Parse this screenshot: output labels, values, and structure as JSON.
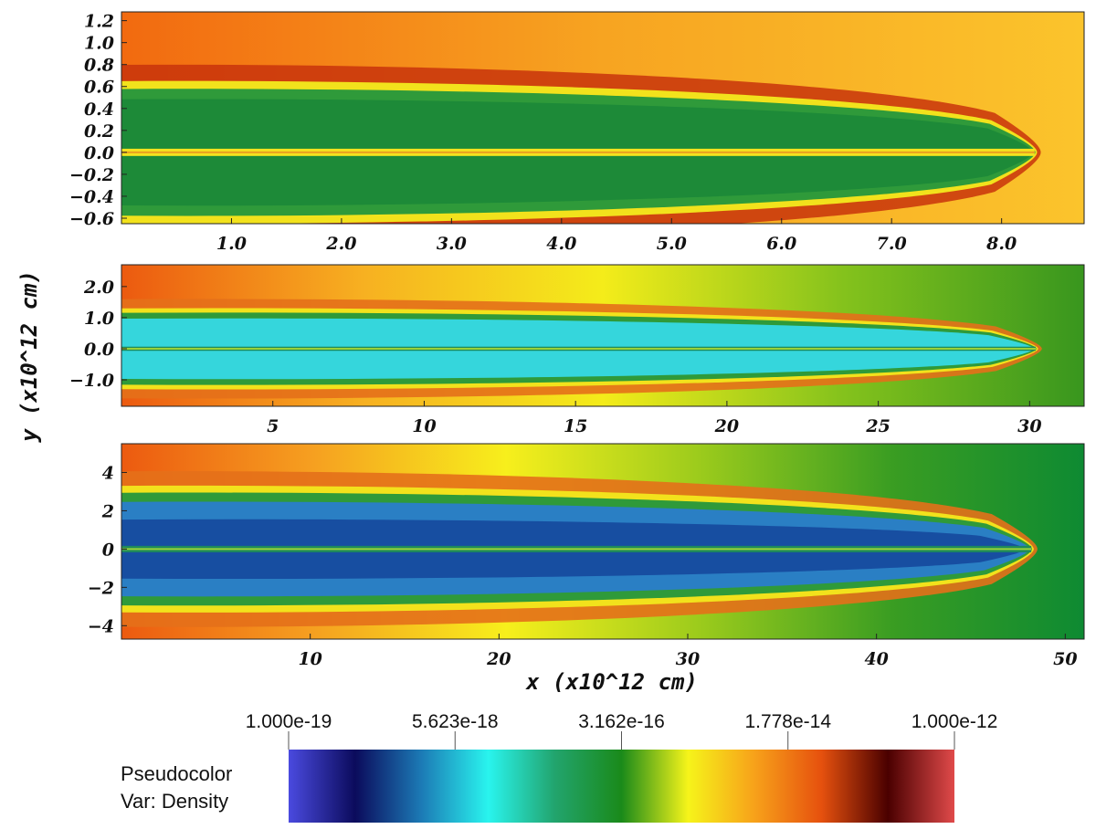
{
  "chart_data": [
    {
      "type": "heatmap",
      "panel": "top",
      "xlim": [
        0,
        8.75
      ],
      "ylim": [
        -0.65,
        1.28
      ],
      "xticks": [
        1.0,
        2.0,
        3.0,
        4.0,
        5.0,
        6.0,
        7.0,
        8.0
      ],
      "xtick_labels": [
        "1.0",
        "2.0",
        "3.0",
        "4.0",
        "5.0",
        "6.0",
        "7.0",
        "8.0"
      ],
      "yticks": [
        1.2,
        1.0,
        0.8,
        0.6,
        0.4,
        0.2,
        0.0,
        -0.2,
        -0.4,
        -0.6
      ],
      "ytick_labels": [
        "1.2",
        "1.0",
        "0.8",
        "0.6",
        "0.4",
        "0.2",
        "0.0",
        "−0.2",
        "−0.4",
        "−0.6"
      ],
      "jet_head_x": 8.3,
      "cocoon_half_width": 0.55,
      "ambient_gradient": [
        "#f26a10",
        "#f7a421",
        "#fbc42c"
      ]
    },
    {
      "type": "heatmap",
      "panel": "middle",
      "xlim": [
        0,
        31.8
      ],
      "ylim": [
        -1.85,
        2.7
      ],
      "xticks": [
        5,
        10,
        15,
        20,
        25,
        30
      ],
      "xtick_labels": [
        "5",
        "10",
        "15",
        "20",
        "25",
        "30"
      ],
      "yticks": [
        2.0,
        1.0,
        0.0,
        -1.0
      ],
      "ytick_labels": [
        "2.0",
        "1.0",
        "0.0",
        "−1.0"
      ],
      "jet_head_x": 30.2,
      "cocoon_half_width": 1.1,
      "ambient_gradient": [
        "#ec5a10",
        "#f7b021",
        "#f4ec1a",
        "#84c21c",
        "#38961e"
      ]
    },
    {
      "type": "heatmap",
      "panel": "bottom",
      "xlim": [
        0,
        51
      ],
      "ylim": [
        -4.7,
        5.5
      ],
      "xticks": [
        10,
        20,
        30,
        40,
        50
      ],
      "xtick_labels": [
        "10",
        "20",
        "30",
        "40",
        "50"
      ],
      "yticks": [
        4,
        2,
        0,
        -2,
        -4
      ],
      "ytick_labels": [
        "4",
        "2",
        "0",
        "−2",
        "−4"
      ],
      "jet_head_x": 48.2,
      "cocoon_half_width": 2.8,
      "ambient_gradient": [
        "#ec5a10",
        "#f6a020",
        "#f7ef1c",
        "#9ccb1c",
        "#3a9d22",
        "#0e8a32"
      ]
    }
  ],
  "axes": {
    "xlabel": "x (x10^12 cm)",
    "ylabel": "y (x10^12 cm)"
  },
  "colorbar": {
    "tick_labels": [
      "1.000e-19",
      "5.623e-18",
      "3.162e-16",
      "1.778e-14",
      "1.000e-12"
    ],
    "values": [
      1e-19,
      5.623e-18,
      3.162e-16,
      1.778e-14,
      1e-12
    ],
    "scale": "log",
    "colors": [
      "#4a4adf",
      "#0b0b5c",
      "#1c7bb6",
      "#29f4ee",
      "#22a46d",
      "#1a8a1a",
      "#f6f41a",
      "#f7a11a",
      "#e6510e",
      "#4a0000",
      "#e04a4a"
    ],
    "legend_line1": "Pseudocolor",
    "legend_line2": "Var: Density"
  }
}
